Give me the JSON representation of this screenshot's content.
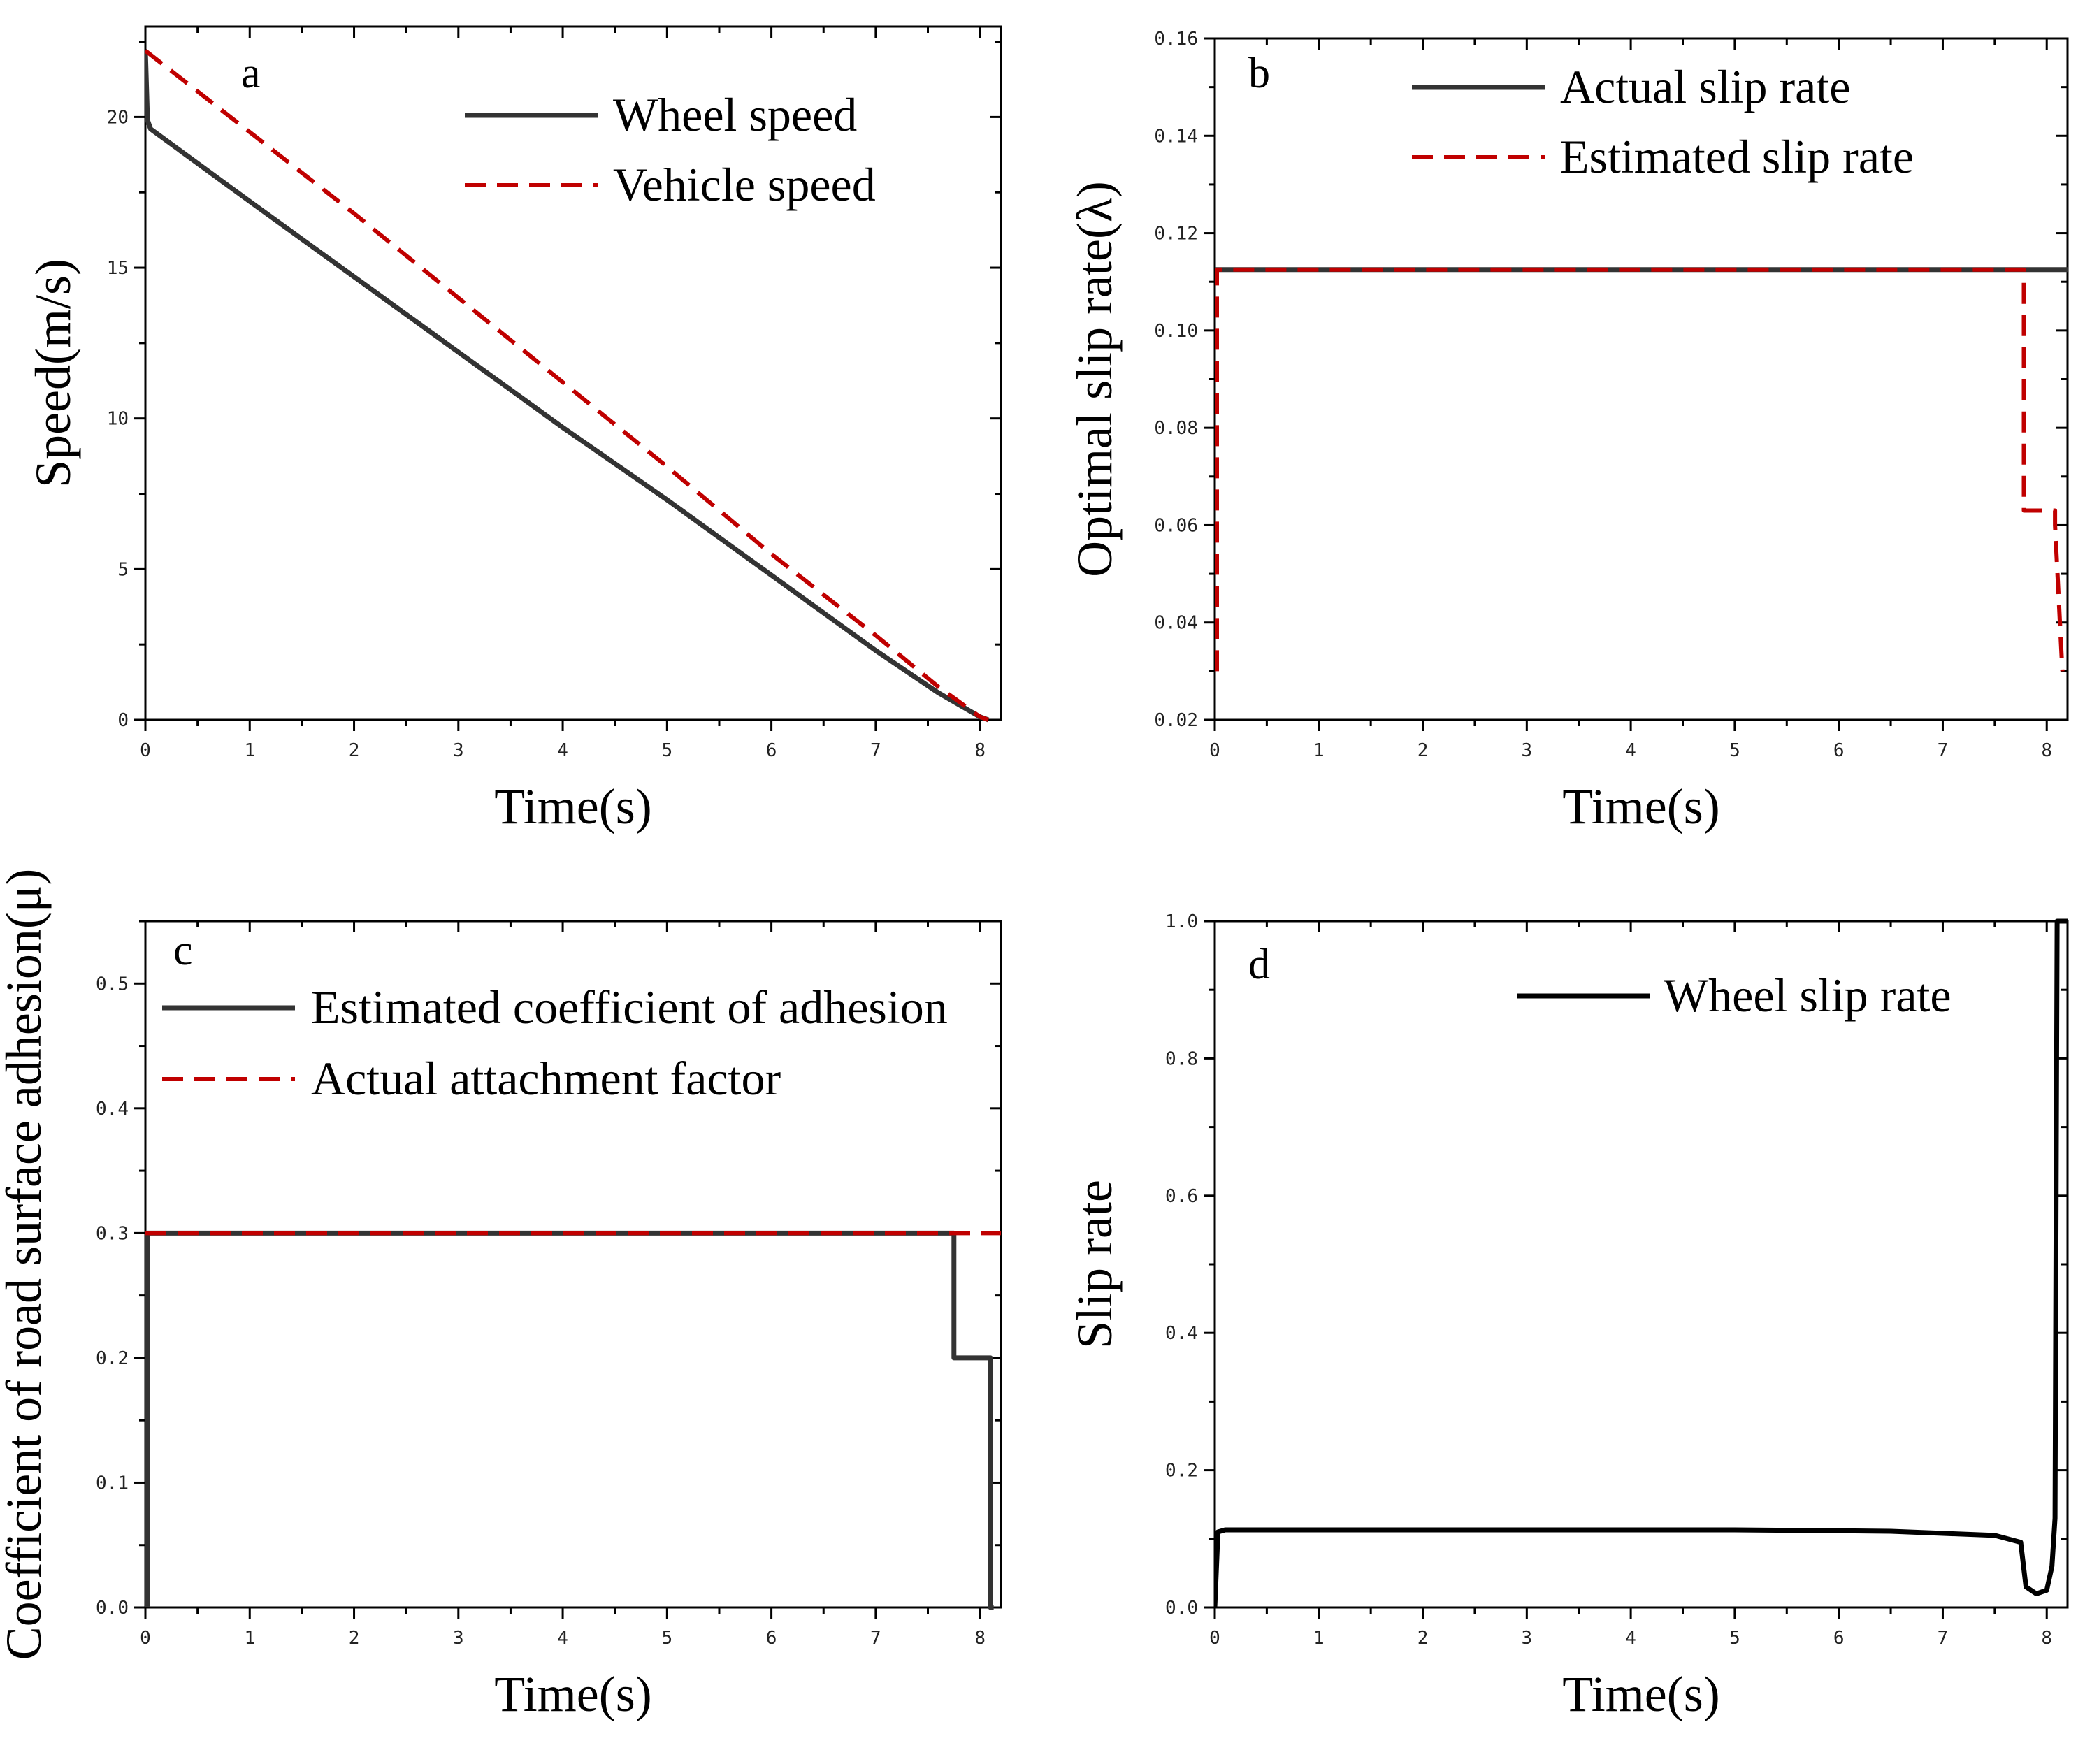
{
  "chart_data": [
    {
      "type": "line",
      "panel": "a",
      "xlabel": "Time(s)",
      "ylabel": "Speed(m/s)",
      "xlim": [
        0,
        8.2
      ],
      "ylim": [
        0,
        23
      ],
      "xticks": [
        "0",
        "1",
        "2",
        "3",
        "4",
        "5",
        "6",
        "7",
        "8"
      ],
      "yticks": [
        "0",
        "5",
        "10",
        "15",
        "20"
      ],
      "legend_position": "top-right",
      "series": [
        {
          "name": "Wheel speed",
          "style": "solid",
          "color": "#333333",
          "x": [
            0,
            0.02,
            0.05,
            1,
            2,
            3,
            4,
            5,
            6,
            7,
            7.6,
            8.0,
            8.08
          ],
          "y": [
            22.2,
            19.9,
            19.6,
            17.2,
            14.7,
            12.2,
            9.7,
            7.3,
            4.8,
            2.3,
            0.9,
            0.1,
            0.0
          ]
        },
        {
          "name": "Vehicle speed",
          "style": "dashed",
          "color": "#c00000",
          "x": [
            0,
            1,
            2,
            3,
            4,
            5,
            6,
            7,
            7.6,
            8.0,
            8.08
          ],
          "y": [
            22.2,
            19.5,
            16.8,
            14.0,
            11.2,
            8.4,
            5.5,
            2.8,
            1.1,
            0.1,
            0.0
          ]
        }
      ]
    },
    {
      "type": "line",
      "panel": "b",
      "xlabel": "Time(s)",
      "ylabel": "Optimal slip rate(λ)",
      "xlim": [
        0,
        8.2
      ],
      "ylim": [
        0.02,
        0.16
      ],
      "xticks": [
        "0",
        "1",
        "2",
        "3",
        "4",
        "5",
        "6",
        "7",
        "8"
      ],
      "yticks": [
        "0.02",
        "0.04",
        "0.06",
        "0.08",
        "0.10",
        "0.12",
        "0.14",
        "0.16"
      ],
      "legend_position": "top-right",
      "series": [
        {
          "name": "Actual slip rate",
          "style": "solid",
          "color": "#333333",
          "x": [
            0,
            8.2
          ],
          "y": [
            0.1125,
            0.1125
          ]
        },
        {
          "name": "Estimated slip rate",
          "style": "dashed",
          "color": "#c00000",
          "x": [
            0.02,
            0.02,
            0.03,
            7.78,
            7.78,
            8.08,
            8.08,
            8.15
          ],
          "y": [
            0.03,
            0.1125,
            0.1125,
            0.1125,
            0.063,
            0.063,
            0.06,
            0.03
          ]
        }
      ]
    },
    {
      "type": "line",
      "panel": "c",
      "xlabel": "Time(s)",
      "ylabel": "Coefficient of road surface adhesion(μ)",
      "xlim": [
        0,
        8.2
      ],
      "ylim": [
        0,
        0.55
      ],
      "xticks": [
        "0",
        "1",
        "2",
        "3",
        "4",
        "5",
        "6",
        "7",
        "8"
      ],
      "yticks": [
        "0.0",
        "0.1",
        "0.2",
        "0.3",
        "0.4",
        "0.5"
      ],
      "legend_position": "top-left",
      "series": [
        {
          "name": "Estimated coefficient of adhesion",
          "style": "solid",
          "color": "#333333",
          "x": [
            0.02,
            0.02,
            0.03,
            7.75,
            7.75,
            8.1,
            8.1,
            8.13
          ],
          "y": [
            0.0,
            0.3,
            0.3,
            0.3,
            0.2,
            0.2,
            0.0,
            0.0
          ]
        },
        {
          "name": "Actual attachment factor",
          "style": "dashed",
          "color": "#c00000",
          "x": [
            0,
            8.2
          ],
          "y": [
            0.3,
            0.3
          ]
        }
      ]
    },
    {
      "type": "line",
      "panel": "d",
      "xlabel": "Time(s)",
      "ylabel": "Slip rate",
      "xlim": [
        0,
        8.2
      ],
      "ylim": [
        0,
        1.0
      ],
      "xticks": [
        "0",
        "1",
        "2",
        "3",
        "4",
        "5",
        "6",
        "7",
        "8"
      ],
      "yticks": [
        "0.0",
        "0.2",
        "0.4",
        "0.6",
        "0.8",
        "1.0"
      ],
      "legend_position": "top-right",
      "series": [
        {
          "name": "Wheel slip rate",
          "style": "solid",
          "color": "#000000",
          "x": [
            0,
            0.03,
            0.1,
            1,
            3,
            5,
            6.5,
            7.5,
            7.75,
            7.8,
            7.9,
            8.0,
            8.05,
            8.08,
            8.1,
            8.12,
            8.2
          ],
          "y": [
            0.0,
            0.11,
            0.113,
            0.113,
            0.113,
            0.113,
            0.111,
            0.105,
            0.095,
            0.03,
            0.02,
            0.025,
            0.06,
            0.13,
            1.0,
            1.0,
            1.0
          ]
        }
      ]
    }
  ],
  "panels": {
    "a": {
      "label": "a",
      "legend": [
        "Wheel speed",
        "Vehicle speed"
      ]
    },
    "b": {
      "label": "b",
      "legend": [
        "Actual slip rate",
        "Estimated slip rate"
      ]
    },
    "c": {
      "label": "c",
      "legend": [
        "Estimated coefficient of adhesion",
        "Actual attachment factor"
      ]
    },
    "d": {
      "label": "d",
      "legend": [
        "Wheel slip rate"
      ]
    }
  }
}
